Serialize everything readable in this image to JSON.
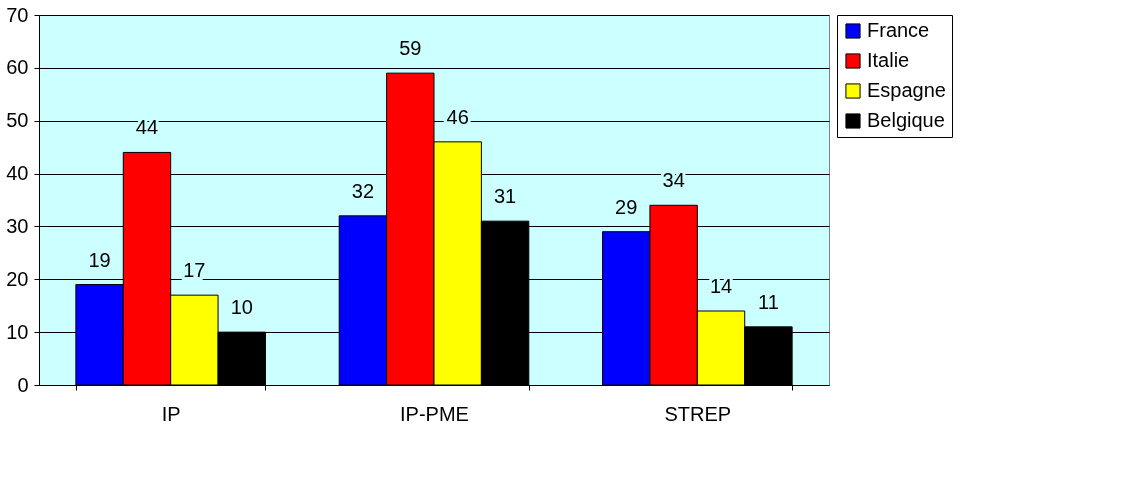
{
  "chart_data": {
    "type": "bar",
    "categories": [
      "IP",
      "IP-PME",
      "STREP"
    ],
    "series": [
      {
        "name": "France",
        "color": "#0000ff",
        "values": [
          19,
          32,
          29
        ]
      },
      {
        "name": "Italie",
        "color": "#ff0000",
        "values": [
          44,
          59,
          34
        ]
      },
      {
        "name": "Espagne",
        "color": "#ffff00",
        "values": [
          17,
          46,
          14
        ]
      },
      {
        "name": "Belgique",
        "color": "#000000",
        "values": [
          10,
          31,
          11
        ]
      }
    ],
    "ylim": [
      0,
      70
    ],
    "yticks": [
      0,
      10,
      20,
      30,
      40,
      50,
      60,
      70
    ],
    "grid": "y",
    "legend": "right",
    "data_labels": true
  }
}
